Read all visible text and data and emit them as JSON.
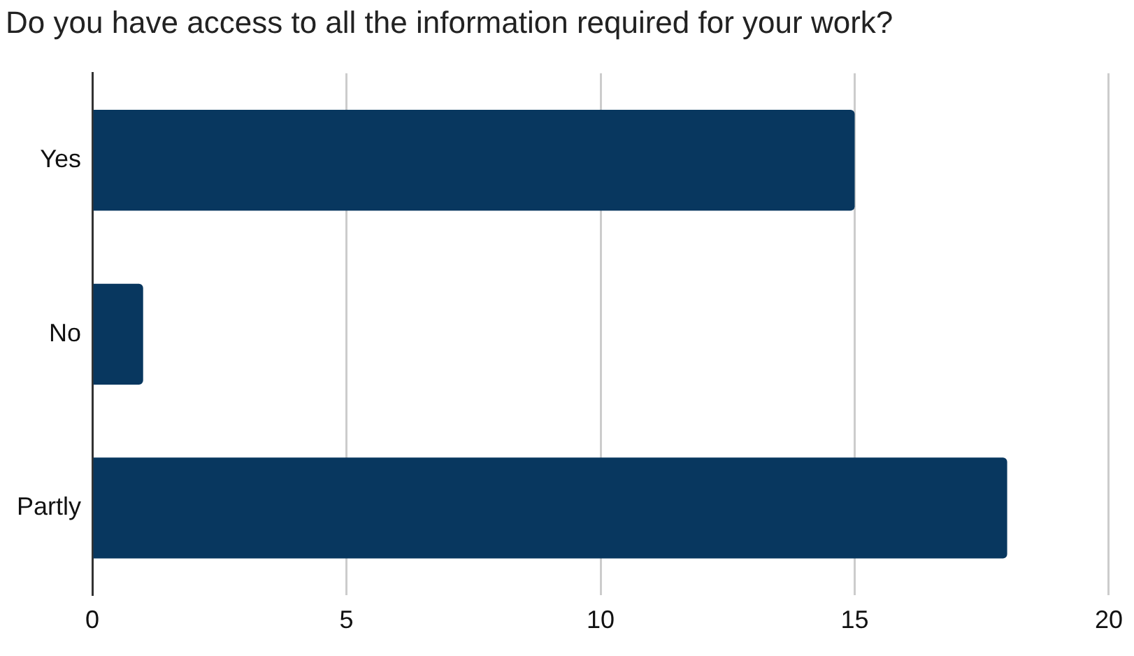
{
  "chart_data": {
    "type": "bar",
    "orientation": "horizontal",
    "title": "Do you have access to all the information required for your work?",
    "categories": [
      "Yes",
      "No",
      "Partly"
    ],
    "values": [
      15,
      1,
      18
    ],
    "color": "#08375f",
    "xlim": [
      0,
      20
    ],
    "xticks": [
      0,
      5,
      10,
      15,
      20
    ],
    "grid": "x",
    "legend": false
  }
}
